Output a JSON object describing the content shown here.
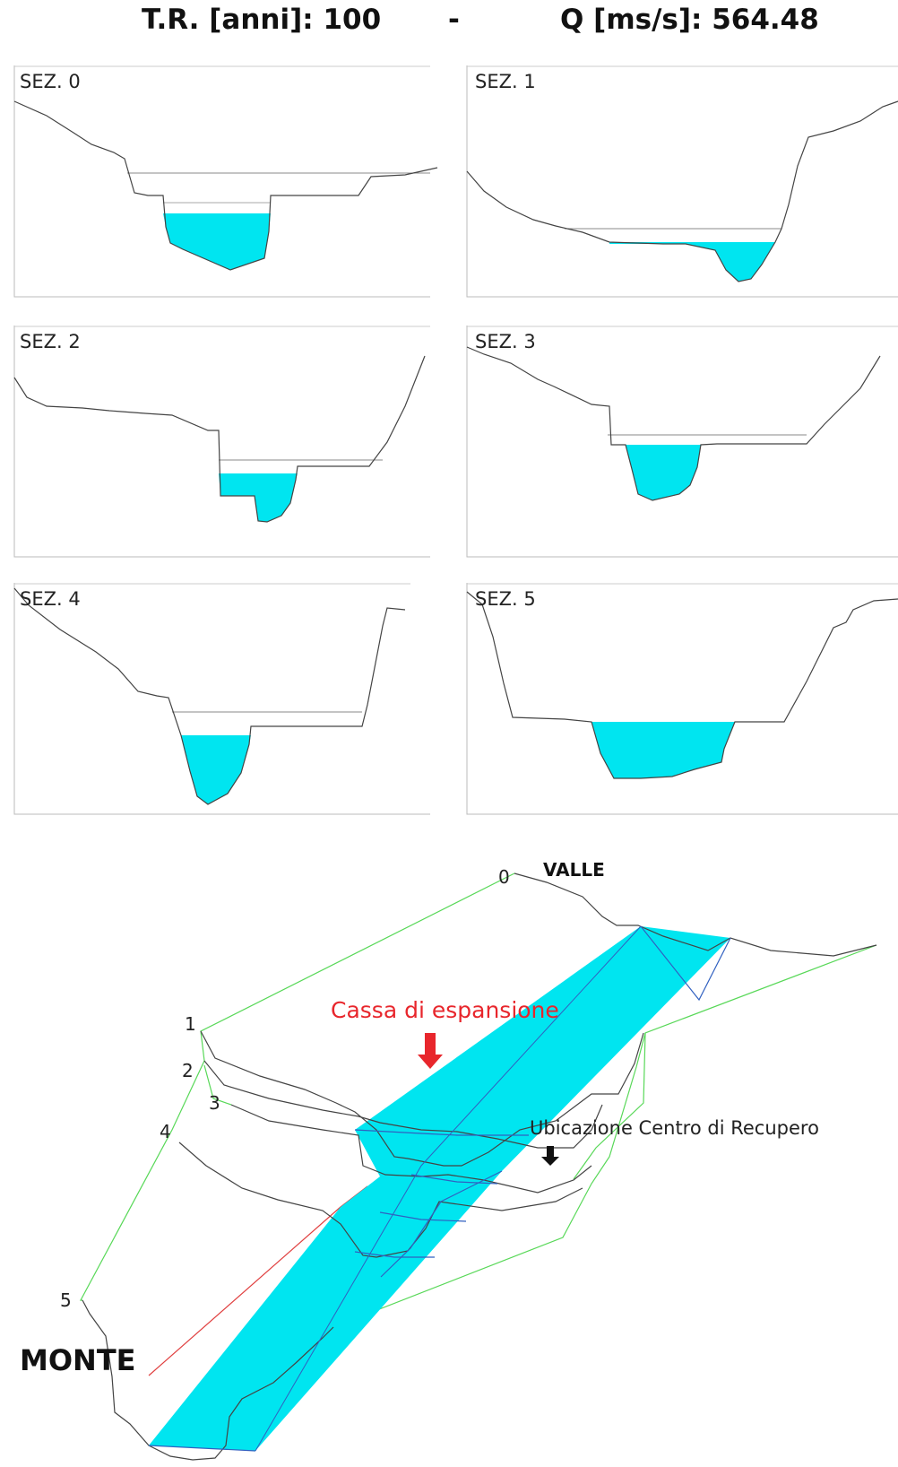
{
  "header": {
    "left_text": "T.R. [anni]: 100",
    "separator": "-",
    "right_text": "Q [ms/s]: 564.48"
  },
  "colors": {
    "water": "#00e5f0",
    "terrain": "#444444",
    "bank": "#e04040",
    "connector": "#58d858",
    "annotation_red": "#e8262c"
  },
  "sections": [
    {
      "label": "SEZ. 0"
    },
    {
      "label": "SEZ. 1"
    },
    {
      "label": "SEZ. 2"
    },
    {
      "label": "SEZ. 3"
    },
    {
      "label": "SEZ. 4"
    },
    {
      "label": "SEZ. 5"
    }
  ],
  "perspective": {
    "labels": {
      "valle": "VALLE",
      "monte": "MONTE",
      "cassa": "Cassa di espansione",
      "ubicazione": "Ubicazione Centro di Recupero"
    },
    "section_numbers": [
      "0",
      "1",
      "2",
      "3",
      "4",
      "5"
    ]
  }
}
